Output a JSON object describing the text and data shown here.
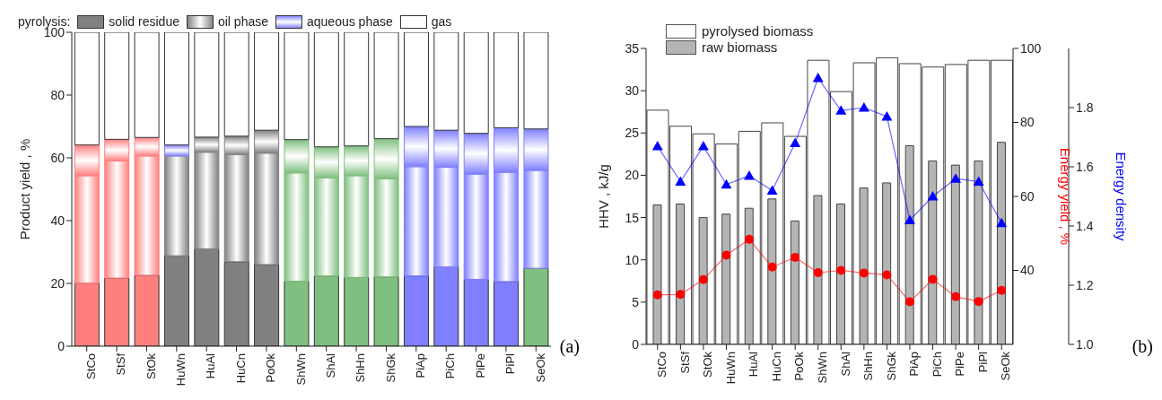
{
  "chart_data": [
    {
      "type": "bar",
      "stacked": true,
      "ylabel": "Product yield , %",
      "legend_title": "pyrolysis:",
      "legend": "top",
      "ylim": [
        0,
        100
      ],
      "yticks": [
        0,
        20,
        40,
        60,
        80,
        100
      ],
      "categories": [
        "StCo",
        "StSf",
        "StOk",
        "HuWn",
        "HuAl",
        "HuCn",
        "PoOk",
        "ShWn",
        "ShAl",
        "ShHn",
        "ShGk",
        "PiAp",
        "PiCh",
        "PiPe",
        "PiPl",
        "SeOk"
      ],
      "series": [
        {
          "name": "solid residue",
          "color": "#808080",
          "colors": [
            "#ff7f7f",
            "#ff7f7f",
            "#ff7f7f",
            "#808080",
            "#808080",
            "#808080",
            "#808080",
            "#7fbf7f",
            "#7fbf7f",
            "#7fbf7f",
            "#7fbf7f",
            "#7f7fff",
            "#7f7fff",
            "#7f7fff",
            "#7f7fff",
            "#7fbf7f"
          ],
          "values": [
            20.1,
            21.7,
            22.6,
            28.8,
            31.0,
            26.9,
            26.0,
            20.7,
            22.4,
            21.9,
            22.1,
            22.4,
            25.3,
            21.3,
            20.6,
            24.8
          ]
        },
        {
          "name": "oil phase",
          "color": "#808080",
          "colors": [
            "#ff7f7f",
            "#ff7f7f",
            "#ff7f7f",
            "#808080",
            "#808080",
            "#808080",
            "#808080",
            "#7fbf7f",
            "#7fbf7f",
            "#7fbf7f",
            "#7fbf7f",
            "#7f7fff",
            "#7f7fff",
            "#7f7fff",
            "#7f7fff",
            "#7f7fff"
          ],
          "values": [
            34.2,
            37.3,
            38.0,
            31.8,
            30.8,
            34.1,
            35.5,
            34.5,
            31.2,
            32.4,
            31.2,
            34.8,
            31.7,
            33.5,
            34.8,
            31.2
          ]
        },
        {
          "name": "aqueous phase",
          "color": "#7f7fff",
          "colors": [
            "#ff7f7f",
            "#ff7f7f",
            "#ff7f7f",
            "#7f7fff",
            "#808080",
            "#808080",
            "#808080",
            "#7fbf7f",
            "#7fbf7f",
            "#7fbf7f",
            "#7fbf7f",
            "#7f7fff",
            "#7f7fff",
            "#7f7fff",
            "#7f7fff",
            "#7f7fff"
          ],
          "values": [
            9.8,
            6.9,
            5.9,
            3.5,
            4.8,
            5.9,
            7.3,
            10.6,
            9.9,
            9.5,
            12.8,
            12.8,
            11.8,
            13.0,
            14.2,
            13.2
          ]
        },
        {
          "name": "gas",
          "color": "#ffffff",
          "values": [
            35.9,
            34.1,
            33.5,
            35.9,
            33.4,
            33.1,
            31.2,
            34.2,
            36.5,
            36.2,
            33.9,
            30.0,
            31.2,
            32.2,
            30.4,
            30.8
          ]
        }
      ],
      "annotations": [
        "(a)"
      ]
    },
    {
      "type": "bar",
      "ylabel": "HHV , kJ/g",
      "y2label": "Energy yield , %",
      "y3label": "Energy density",
      "legend": "top left",
      "ylim": [
        0,
        35
      ],
      "yticks": [
        0,
        5,
        10,
        15,
        20,
        25,
        30,
        35
      ],
      "y2lim": [
        20,
        100
      ],
      "y2ticks": [
        40,
        60,
        80,
        100
      ],
      "y3lim": [
        1.0,
        2.0
      ],
      "y3ticks": [
        {
          "value": 1.0,
          "label": "1.0"
        },
        {
          "value": 1.2,
          "label": "1.2"
        },
        {
          "value": 1.4,
          "label": "1.4"
        },
        {
          "value": 1.6,
          "label": "1.6"
        },
        {
          "value": 1.8,
          "label": "1.8"
        }
      ],
      "categories": [
        "StCo",
        "StSf",
        "StOk",
        "HuWn",
        "HuAl",
        "HuCn",
        "PoOk",
        "ShWn",
        "ShAl",
        "ShHn",
        "ShGk",
        "PiAp",
        "PiCh",
        "PiPe",
        "PiPl",
        "SeOk"
      ],
      "series": [
        {
          "name": "pyrolysed biomass",
          "type": "bar",
          "color": "#ffffff",
          "values": [
            27.7,
            25.8,
            24.9,
            23.7,
            25.2,
            26.2,
            24.6,
            33.6,
            29.9,
            33.3,
            33.9,
            33.2,
            32.8,
            33.1,
            33.6,
            33.6
          ]
        },
        {
          "name": "raw biomass",
          "type": "bar",
          "color": "#b4b4b4",
          "values": [
            16.5,
            16.6,
            15.0,
            15.4,
            16.1,
            17.2,
            14.6,
            17.6,
            16.6,
            18.5,
            19.1,
            23.5,
            21.7,
            21.2,
            21.7,
            23.9
          ]
        },
        {
          "type": "line",
          "axis": "y2",
          "color": "#ff0000",
          "marker": "circle",
          "values": [
            33.4,
            33.5,
            37.5,
            44.1,
            48.4,
            40.9,
            43.5,
            39.4,
            40.0,
            39.3,
            38.8,
            31.5,
            37.6,
            32.9,
            31.6,
            34.6
          ]
        },
        {
          "type": "line",
          "axis": "y3",
          "color": "#0000ff",
          "marker": "triangle",
          "values": [
            1.67,
            1.55,
            1.67,
            1.54,
            1.57,
            1.52,
            1.68,
            1.9,
            1.79,
            1.8,
            1.77,
            1.42,
            1.5,
            1.56,
            1.55,
            1.41
          ]
        }
      ],
      "annotations": [
        "(b)"
      ]
    }
  ]
}
